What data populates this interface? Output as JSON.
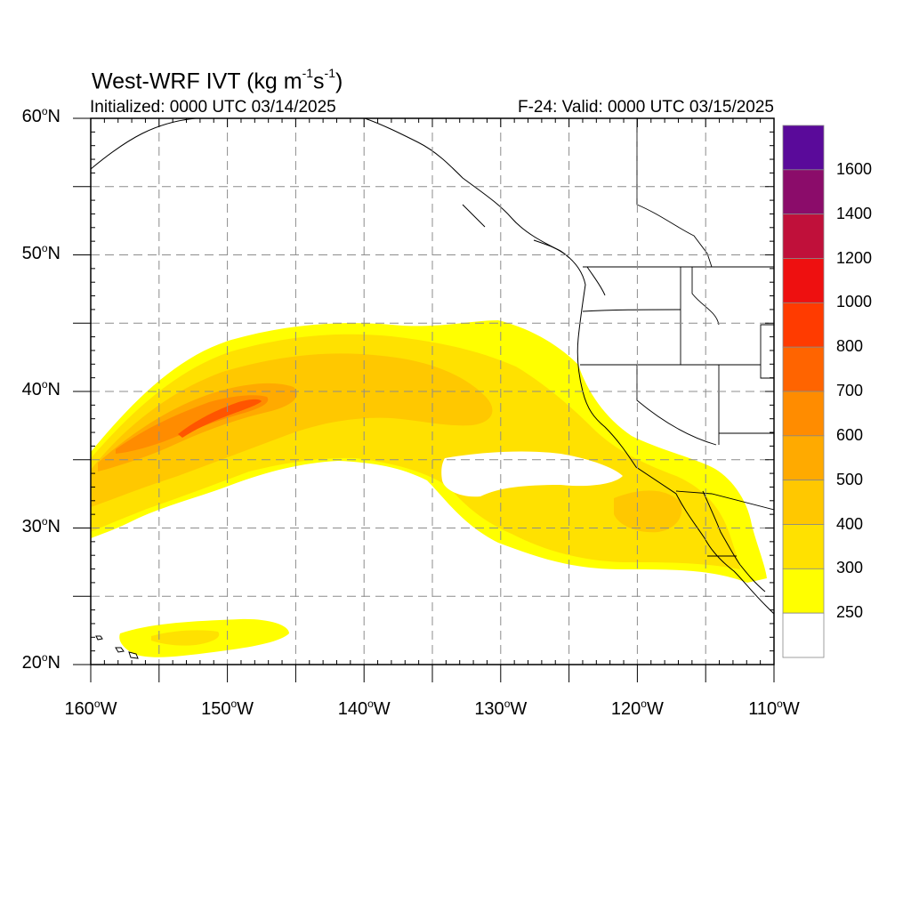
{
  "title": {
    "prefix": "West-WRF IVT (kg m",
    "exp1": "-1",
    "middle": "s",
    "exp2": "-1",
    "suffix": ")"
  },
  "subtitle_left": "Initialized: 0000 UTC 03/14/2025",
  "subtitle_right": "F-24: Valid: 0000 UTC 03/15/2025",
  "map": {
    "lon_range": [
      -160,
      -110
    ],
    "lat_range": [
      20,
      60
    ],
    "lat_labels": [
      {
        "value": 60,
        "num": "60",
        "hemi": "N"
      },
      {
        "value": 50,
        "num": "50",
        "hemi": "N"
      },
      {
        "value": 40,
        "num": "40",
        "hemi": "N"
      },
      {
        "value": 30,
        "num": "30",
        "hemi": "N"
      },
      {
        "value": 20,
        "num": "20",
        "hemi": "N"
      }
    ],
    "lon_labels": [
      {
        "value": -160,
        "num": "160",
        "hemi": "W"
      },
      {
        "value": -150,
        "num": "150",
        "hemi": "W"
      },
      {
        "value": -140,
        "num": "140",
        "hemi": "W"
      },
      {
        "value": -130,
        "num": "130",
        "hemi": "W"
      },
      {
        "value": -120,
        "num": "120",
        "hemi": "W"
      },
      {
        "value": -110,
        "num": "110",
        "hemi": "W"
      }
    ],
    "gridline_step_deg": 5,
    "gridlines": "dashed gray"
  },
  "colorbar": {
    "labels": [
      "1600",
      "1400",
      "1200",
      "1000",
      "800",
      "700",
      "600",
      "500",
      "400",
      "300",
      "250"
    ],
    "colors": [
      "#5a0a9a",
      "#8b0c6a",
      "#c0103a",
      "#ee1010",
      "#ff3b00",
      "#ff6400",
      "#ff8c00",
      "#ffaa00",
      "#ffc800",
      "#ffe100",
      "#ffff00",
      "#ffffff"
    ]
  }
}
